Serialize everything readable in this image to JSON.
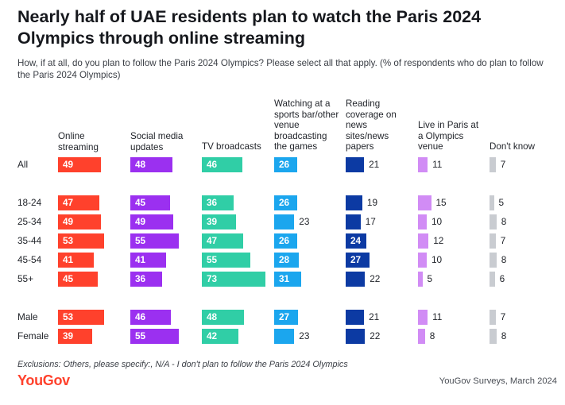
{
  "title": "Nearly half of UAE residents plan to watch the Paris 2024 Olympics through online streaming",
  "subtitle": "How, if at all, do you plan to follow the Paris 2024 Olympics? Please select all that apply. (% of respondents who do plan to follow the Paris 2024 Olympics)",
  "exclusions": "Exclusions: Others, please specify:, N/A - I don't plan to follow the Paris 2024 Olympics",
  "source": "YouGov Surveys, March 2024",
  "logo_text": "YouGov",
  "chart_data": {
    "type": "bar",
    "categories": [
      "All",
      "18-24",
      "25-34",
      "35-44",
      "45-54",
      "55+",
      "Male",
      "Female"
    ],
    "series": [
      {
        "name": "Online streaming",
        "color": "#ff412c",
        "values": [
          49,
          47,
          49,
          53,
          41,
          45,
          53,
          39
        ]
      },
      {
        "name": "Social media updates",
        "color": "#9b30f0",
        "values": [
          48,
          45,
          49,
          55,
          41,
          36,
          46,
          55
        ]
      },
      {
        "name": "TV broadcasts",
        "color": "#30cea6",
        "values": [
          46,
          36,
          39,
          47,
          55,
          73,
          48,
          42
        ]
      },
      {
        "name": "Watching at a sports bar/other venue broadcasting the games",
        "color": "#1ba6ee",
        "values": [
          26,
          26,
          23,
          26,
          28,
          31,
          27,
          23
        ]
      },
      {
        "name": "Reading coverage on news sites/news papers",
        "color": "#0c3aa3",
        "values": [
          21,
          19,
          17,
          24,
          27,
          22,
          21,
          22
        ]
      },
      {
        "name": "Live in Paris at a Olympics venue",
        "color": "#d18cf5",
        "values": [
          11,
          15,
          10,
          12,
          10,
          5,
          11,
          8
        ]
      },
      {
        "name": "Don't know",
        "color": "#c9ccd1",
        "values": [
          7,
          5,
          8,
          7,
          8,
          6,
          7,
          8
        ]
      }
    ]
  }
}
